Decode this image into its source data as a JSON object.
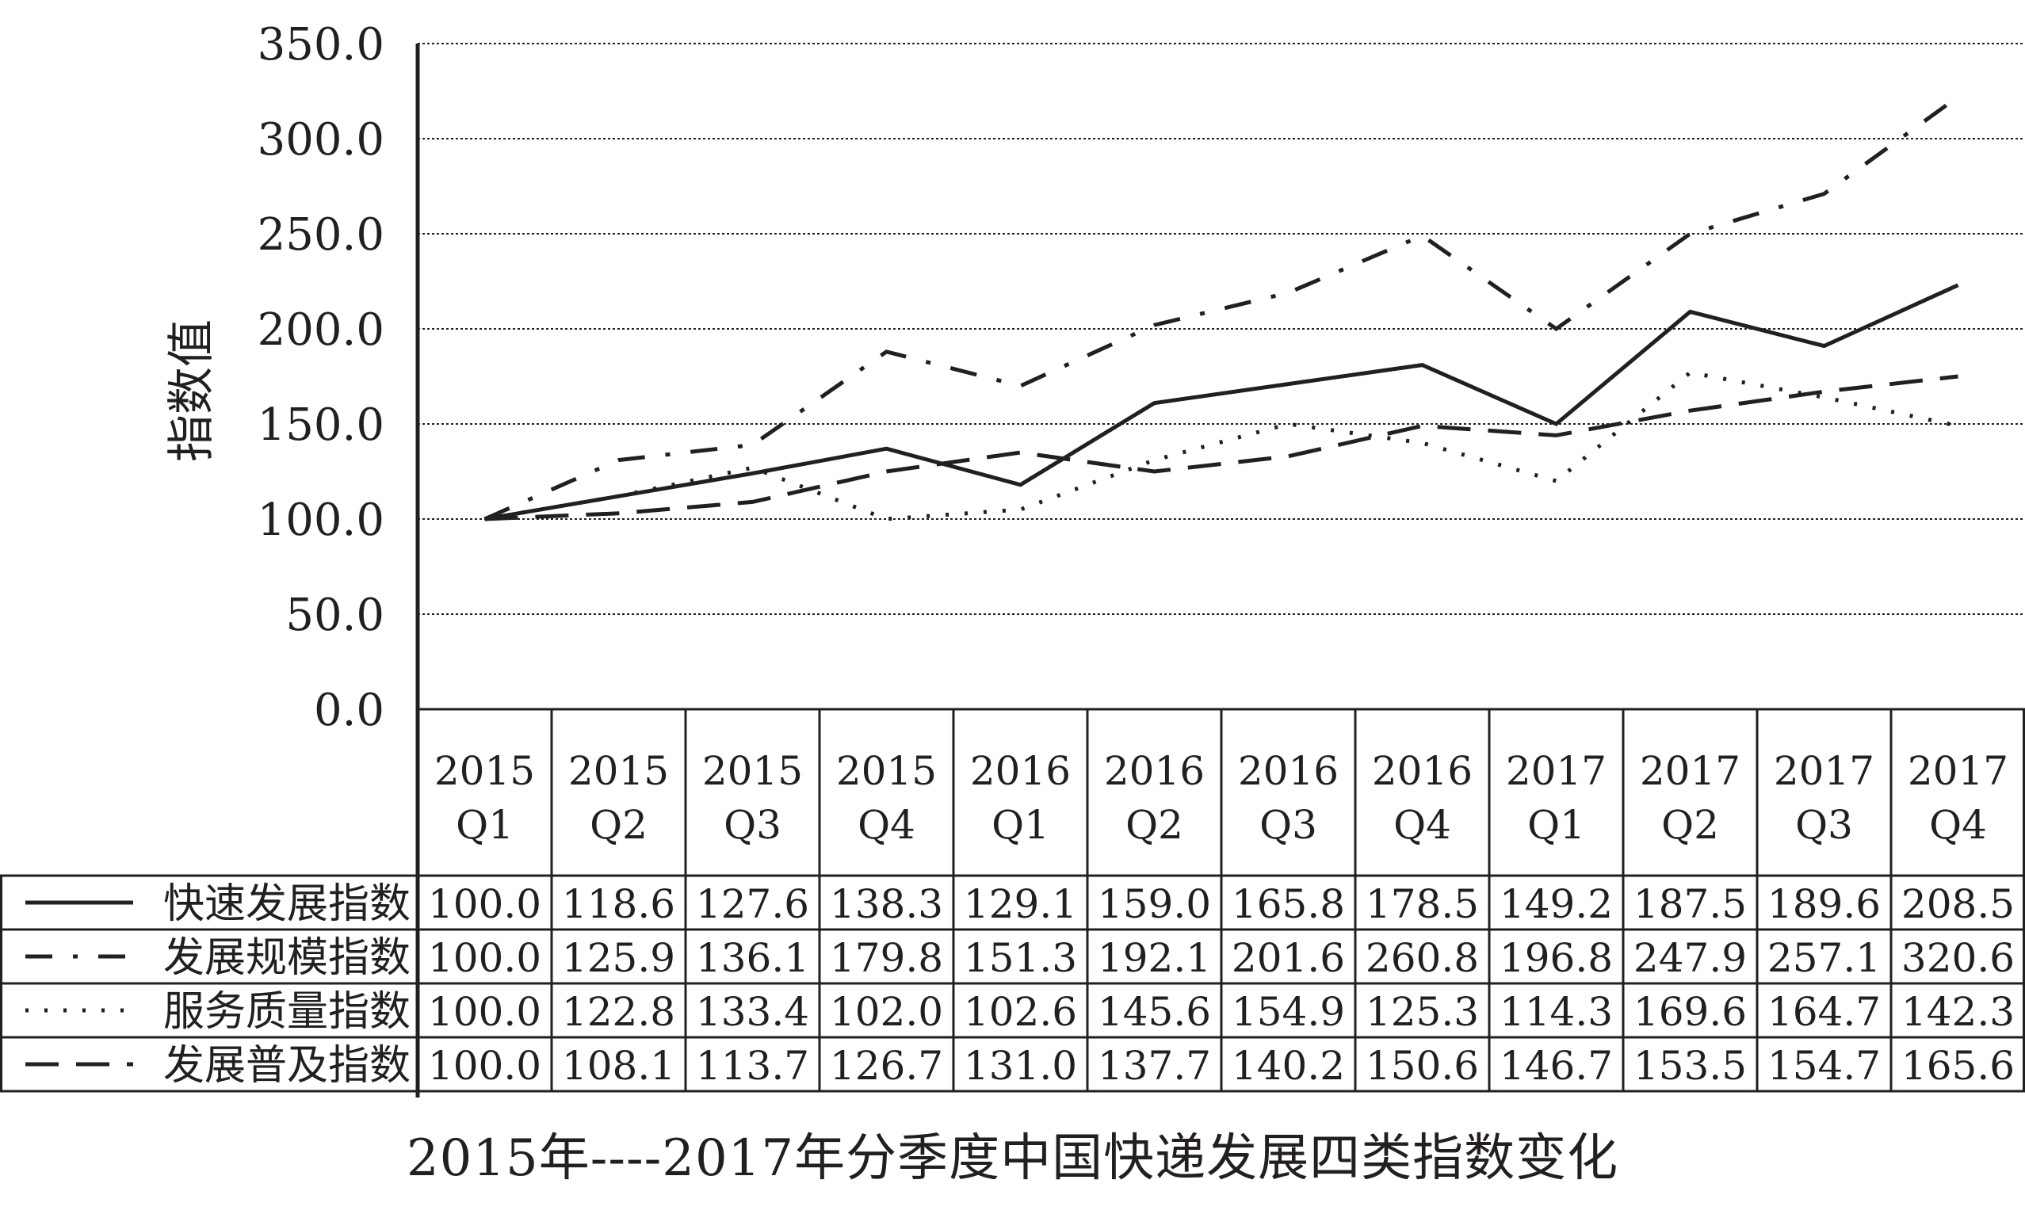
{
  "chart_data": {
    "type": "line",
    "title": "2015年----2017年分季度中国快递发展四类指数变化",
    "ylabel": "指数值",
    "ylim": [
      0,
      350
    ],
    "yticks": [
      "350.0",
      "300.0",
      "250.0",
      "200.0",
      "150.0",
      "100.0",
      "50.0",
      "0.0"
    ],
    "ytick_values": [
      350,
      300,
      250,
      200,
      150,
      100,
      50,
      0
    ],
    "grid": true,
    "legend": "data-table-left",
    "categories": [
      {
        "year": "2015",
        "quarter": "Q1"
      },
      {
        "year": "2015",
        "quarter": "Q2"
      },
      {
        "year": "2015",
        "quarter": "Q3"
      },
      {
        "year": "2015",
        "quarter": "Q4"
      },
      {
        "year": "2016",
        "quarter": "Q1"
      },
      {
        "year": "2016",
        "quarter": "Q2"
      },
      {
        "year": "2016",
        "quarter": "Q3"
      },
      {
        "year": "2016",
        "quarter": "Q4"
      },
      {
        "year": "2017",
        "quarter": "Q1"
      },
      {
        "year": "2017",
        "quarter": "Q2"
      },
      {
        "year": "2017",
        "quarter": "Q3"
      },
      {
        "year": "2017",
        "quarter": "Q4"
      }
    ],
    "series": [
      {
        "name": "快速发展指数",
        "style": "solid",
        "values": [
          100.0,
          118.6,
          127.6,
          138.3,
          129.1,
          159.0,
          165.8,
          178.5,
          149.2,
          187.5,
          189.6,
          208.5
        ],
        "labels": [
          "100.0",
          "118.6",
          "127.6",
          "138.3",
          "129.1",
          "159.0",
          "165.8",
          "178.5",
          "149.2",
          "187.5",
          "189.6",
          "208.5"
        ],
        "plotted": [
          100.0,
          112.0,
          124.0,
          137.0,
          118.0,
          161.0,
          171.0,
          181.0,
          150.0,
          209.0,
          191.0,
          223.0
        ]
      },
      {
        "name": "发展规模指数",
        "style": "dash-dot",
        "values": [
          100.0,
          125.9,
          136.1,
          179.8,
          151.3,
          192.1,
          201.6,
          260.8,
          196.8,
          247.9,
          257.1,
          320.6
        ],
        "labels": [
          "100.0",
          "125.9",
          "136.1",
          "179.8",
          "151.3",
          "192.1",
          "201.6",
          "260.8",
          "196.8",
          "247.9",
          "257.1",
          "320.6"
        ],
        "plotted": [
          100.0,
          131.0,
          139.0,
          188.0,
          170.0,
          202.0,
          219.0,
          249.0,
          200.0,
          250.0,
          271.0,
          322.0
        ]
      },
      {
        "name": "服务质量指数",
        "style": "dotted",
        "values": [
          100.0,
          122.8,
          133.4,
          102.0,
          102.6,
          145.6,
          154.9,
          125.3,
          114.3,
          169.6,
          164.7,
          142.3
        ],
        "labels": [
          "100.0",
          "122.8",
          "133.4",
          "102.0",
          "102.6",
          "145.6",
          "154.9",
          "125.3",
          "114.3",
          "169.6",
          "164.7",
          "142.3"
        ],
        "plotted": [
          100.0,
          112.0,
          127.0,
          100.0,
          105.0,
          131.0,
          150.0,
          140.0,
          120.0,
          177.0,
          164.0,
          149.0
        ]
      },
      {
        "name": "发展普及指数",
        "style": "long-dash",
        "values": [
          100.0,
          108.1,
          113.7,
          126.7,
          131.0,
          137.7,
          140.2,
          150.6,
          146.7,
          153.5,
          154.7,
          165.6
        ],
        "labels": [
          "100.0",
          "108.1",
          "113.7",
          "126.7",
          "131.0",
          "137.7",
          "140.2",
          "150.6",
          "146.7",
          "153.5",
          "154.7",
          "165.6"
        ],
        "plotted": [
          100.0,
          103.0,
          109.0,
          125.0,
          135.0,
          125.0,
          133.0,
          149.0,
          144.0,
          157.0,
          167.0,
          175.0
        ]
      }
    ]
  },
  "colors": {
    "ink": "#231f20",
    "background": "#ffffff"
  }
}
